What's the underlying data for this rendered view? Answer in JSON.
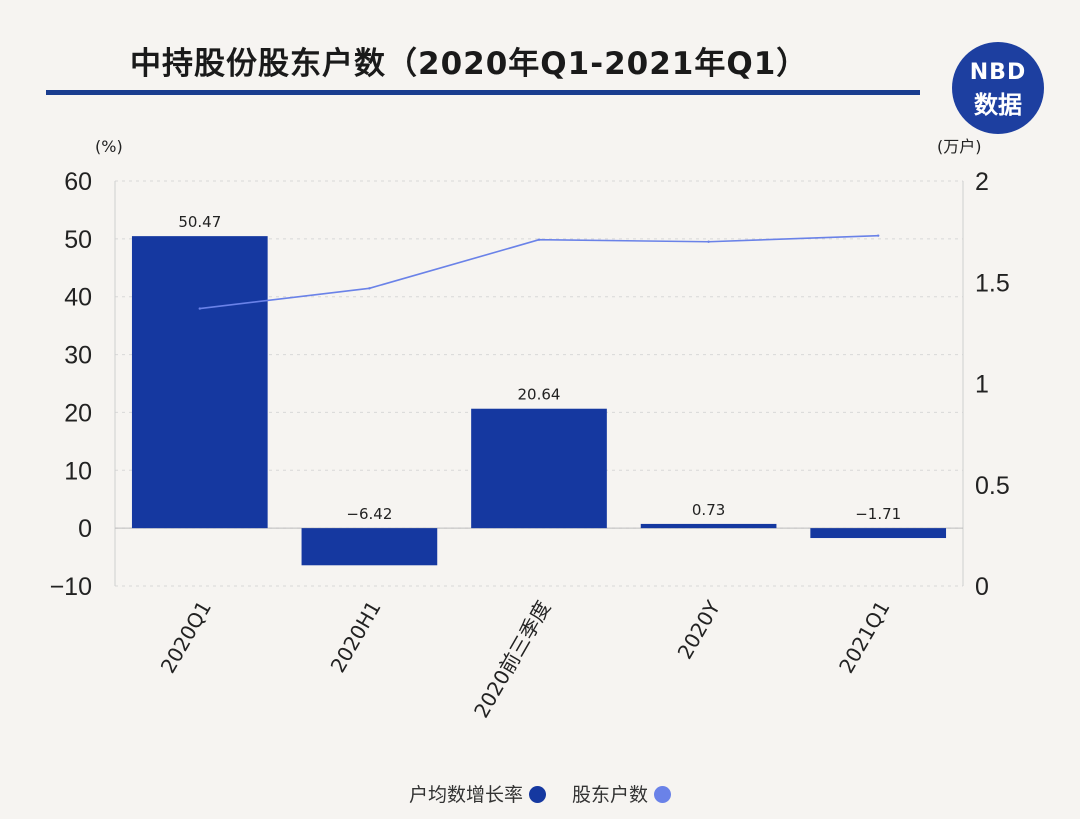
{
  "header": {
    "title": "中持股份股东户数（2020年Q1-2021年Q1）",
    "logo_line1": "NBD",
    "logo_line2": "数据"
  },
  "colors": {
    "bar": "#1538a0",
    "line": "#6a82e8",
    "rule": "#1a3d8f"
  },
  "chart_data": {
    "type": "bar+line",
    "title": "中持股份股东户数（2020年Q1-2021年Q1）",
    "categories": [
      "2020Q1",
      "2020H1",
      "2020前三季度",
      "2020Y",
      "2021Q1"
    ],
    "series": [
      {
        "name": "户均数增长率",
        "type": "bar",
        "axis": "left",
        "values": [
          50.47,
          -6.42,
          20.64,
          0.73,
          -1.71
        ],
        "labels": [
          "50.47",
          "−6.42",
          "20.64",
          "0.73",
          "−1.71"
        ]
      },
      {
        "name": "股东户数",
        "type": "line",
        "axis": "right",
        "values": [
          1.37,
          1.47,
          1.71,
          1.7,
          1.73
        ]
      }
    ],
    "y_left": {
      "unit": "(%)",
      "ylim": [
        -10,
        60
      ],
      "ticks": [
        60,
        50,
        40,
        30,
        20,
        10,
        0,
        -10
      ],
      "tick_labels": [
        "60",
        "50",
        "40",
        "30",
        "20",
        "10",
        "0",
        "−10"
      ]
    },
    "y_right": {
      "unit": "(万户)",
      "ylim": [
        0,
        2
      ],
      "ticks": [
        2,
        1.5,
        1,
        0.5,
        0
      ],
      "tick_labels": [
        "2",
        "1.5",
        "1",
        "0.5",
        "0"
      ]
    },
    "legend": [
      {
        "label": "户均数增长率",
        "color": "#1538a0"
      },
      {
        "label": "股东户数",
        "color": "#6a82e8"
      }
    ]
  }
}
